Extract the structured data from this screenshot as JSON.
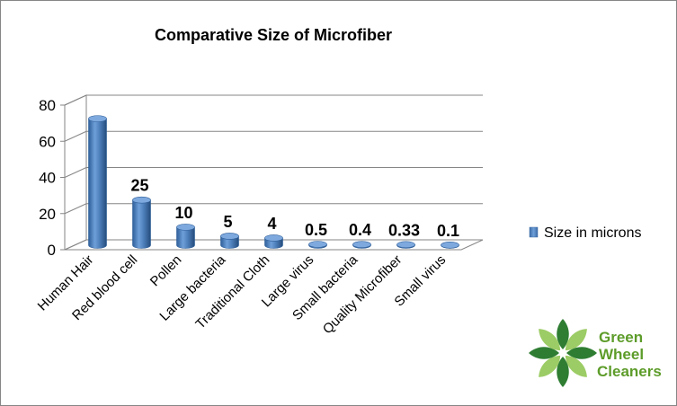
{
  "chart_data": {
    "type": "bar",
    "title": "Comparative Size of Microfiber",
    "categories": [
      "Human Hair",
      "Red blood cell",
      "Pollen",
      "Large bacteria",
      "Traditional  Cloth",
      "Large virus",
      "Small bacteria",
      "Quality Microfiber",
      "Small virus"
    ],
    "series": [
      {
        "name": "Size in microns",
        "values": [
          70,
          25,
          10,
          5,
          4,
          0.5,
          0.4,
          0.33,
          0.1
        ],
        "data_labels": [
          "",
          "25",
          "10",
          "5",
          "4",
          "0.5",
          "0.4",
          "0.33",
          "0.1"
        ],
        "color": "#4f81bd"
      }
    ],
    "y_ticks": [
      "0",
      "20",
      "40",
      "60",
      "80"
    ],
    "ylim": [
      0,
      80
    ],
    "grid": true,
    "legend_position": "right",
    "style": "3d-cylinder"
  },
  "logo": {
    "lines": [
      "Green",
      "Wheel",
      "Cleaners"
    ]
  },
  "colors": {
    "bar": "#4f81bd",
    "grid": "#868686",
    "logo_text": "#5d9c2a",
    "logo_leaf_dark": "#2e7d32",
    "logo_leaf_light": "#9ccc65"
  }
}
